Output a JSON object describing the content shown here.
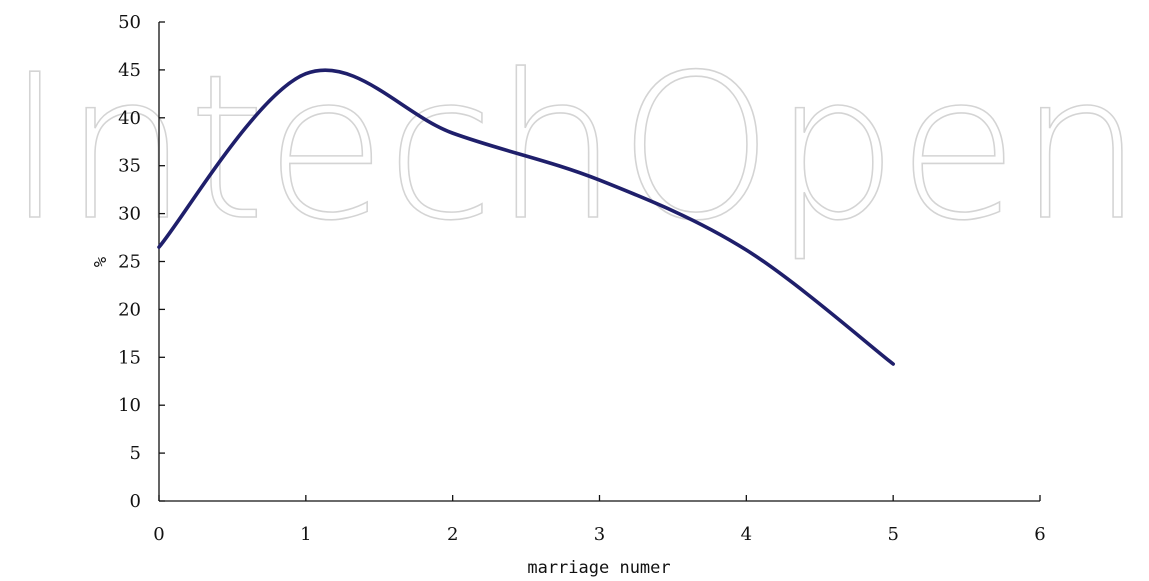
{
  "watermark": "IntechOpen",
  "chart_data": {
    "type": "line",
    "title": "",
    "xlabel": "marriage numer",
    "ylabel": "%",
    "xlim": [
      0,
      6
    ],
    "ylim": [
      0,
      50
    ],
    "x_ticks": [
      0,
      1,
      2,
      3,
      4,
      5,
      6
    ],
    "y_ticks": [
      0,
      5,
      10,
      15,
      20,
      25,
      30,
      35,
      40,
      45,
      50
    ],
    "grid": false,
    "legend": "none",
    "series": [
      {
        "color": "#1f1f6b",
        "smooth": true,
        "points": [
          {
            "x": 0,
            "y": 26.5
          },
          {
            "x": 1,
            "y": 44.6
          },
          {
            "x": 2,
            "y": 38.4
          },
          {
            "x": 3,
            "y": 33.5
          },
          {
            "x": 4,
            "y": 26.2
          },
          {
            "x": 5,
            "y": 14.3
          }
        ]
      }
    ]
  }
}
